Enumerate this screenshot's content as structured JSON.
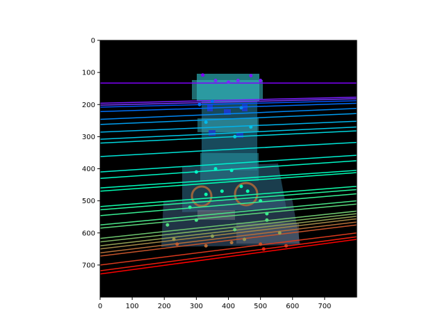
{
  "chart_data": {
    "type": "image-overlay",
    "background": "photo of a tracked robot on black background",
    "xlim": [
      0,
      800
    ],
    "ylim": [
      800,
      0
    ],
    "x_ticks": [
      "0",
      "100",
      "200",
      "300",
      "400",
      "500",
      "600",
      "700"
    ],
    "y_ticks": [
      "0",
      "100",
      "200",
      "300",
      "400",
      "500",
      "600",
      "700"
    ],
    "colormap": "rainbow",
    "lines": [
      {
        "y0": 133,
        "y1": 133
      },
      {
        "y0": 196,
        "y1": 177
      },
      {
        "y0": 202,
        "y1": 182
      },
      {
        "y0": 208,
        "y1": 188
      },
      {
        "y0": 222,
        "y1": 196
      },
      {
        "y0": 246,
        "y1": 212
      },
      {
        "y0": 262,
        "y1": 228
      },
      {
        "y0": 286,
        "y1": 252
      },
      {
        "y0": 308,
        "y1": 270
      },
      {
        "y0": 320,
        "y1": 282
      },
      {
        "y0": 362,
        "y1": 318
      },
      {
        "y0": 410,
        "y1": 358
      },
      {
        "y0": 430,
        "y1": 375
      },
      {
        "y0": 460,
        "y1": 405
      },
      {
        "y0": 470,
        "y1": 412
      },
      {
        "y0": 518,
        "y1": 455
      },
      {
        "y0": 528,
        "y1": 465
      },
      {
        "y0": 546,
        "y1": 478
      },
      {
        "y0": 575,
        "y1": 500
      },
      {
        "y0": 585,
        "y1": 510
      },
      {
        "y0": 617,
        "y1": 532
      },
      {
        "y0": 628,
        "y1": 540
      },
      {
        "y0": 640,
        "y1": 548
      },
      {
        "y0": 650,
        "y1": 556
      },
      {
        "y0": 662,
        "y1": 566
      },
      {
        "y0": 672,
        "y1": 575
      },
      {
        "y0": 700,
        "y1": 600
      },
      {
        "y0": 718,
        "y1": 612
      },
      {
        "y0": 728,
        "y1": 620
      }
    ],
    "points": [
      {
        "x": 320,
        "y": 108,
        "c": 0.0
      },
      {
        "x": 360,
        "y": 125,
        "c": 0.05
      },
      {
        "x": 400,
        "y": 130,
        "c": 0.05
      },
      {
        "x": 430,
        "y": 125,
        "c": 0.05
      },
      {
        "x": 470,
        "y": 110,
        "c": 0.03
      },
      {
        "x": 500,
        "y": 125,
        "c": 0.04
      },
      {
        "x": 310,
        "y": 200,
        "c": 0.15
      },
      {
        "x": 440,
        "y": 210,
        "c": 0.18
      },
      {
        "x": 350,
        "y": 190,
        "c": 0.14
      },
      {
        "x": 330,
        "y": 255,
        "c": 0.26
      },
      {
        "x": 470,
        "y": 270,
        "c": 0.28
      },
      {
        "x": 420,
        "y": 300,
        "c": 0.3
      },
      {
        "x": 300,
        "y": 410,
        "c": 0.42
      },
      {
        "x": 360,
        "y": 400,
        "c": 0.42
      },
      {
        "x": 410,
        "y": 405,
        "c": 0.43
      },
      {
        "x": 440,
        "y": 455,
        "c": 0.5
      },
      {
        "x": 460,
        "y": 470,
        "c": 0.52
      },
      {
        "x": 330,
        "y": 480,
        "c": 0.53
      },
      {
        "x": 380,
        "y": 470,
        "c": 0.52
      },
      {
        "x": 500,
        "y": 500,
        "c": 0.56
      },
      {
        "x": 280,
        "y": 520,
        "c": 0.58
      },
      {
        "x": 520,
        "y": 540,
        "c": 0.62
      },
      {
        "x": 210,
        "y": 575,
        "c": 0.66
      },
      {
        "x": 300,
        "y": 560,
        "c": 0.64
      },
      {
        "x": 420,
        "y": 590,
        "c": 0.7
      },
      {
        "x": 520,
        "y": 560,
        "c": 0.67
      },
      {
        "x": 230,
        "y": 620,
        "c": 0.8
      },
      {
        "x": 350,
        "y": 610,
        "c": 0.78
      },
      {
        "x": 450,
        "y": 620,
        "c": 0.8
      },
      {
        "x": 560,
        "y": 600,
        "c": 0.78
      },
      {
        "x": 240,
        "y": 635,
        "c": 0.88
      },
      {
        "x": 330,
        "y": 640,
        "c": 0.86
      },
      {
        "x": 410,
        "y": 630,
        "c": 0.85
      },
      {
        "x": 500,
        "y": 635,
        "c": 0.9
      },
      {
        "x": 510,
        "y": 650,
        "c": 0.95
      },
      {
        "x": 580,
        "y": 640,
        "c": 0.92
      }
    ]
  }
}
